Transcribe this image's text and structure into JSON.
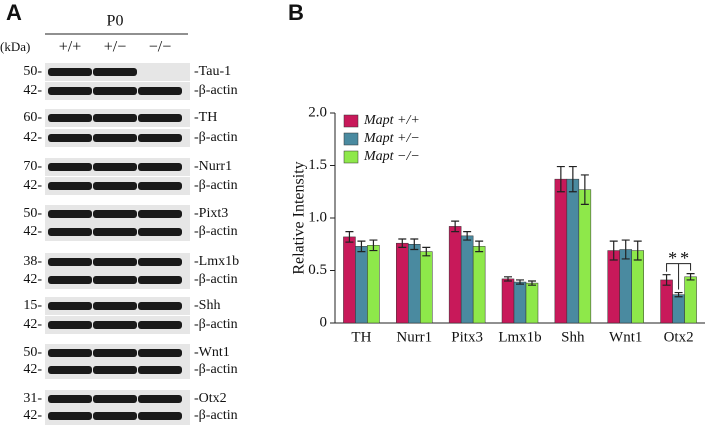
{
  "panel_a": {
    "panel_label": "A",
    "stage": "P0",
    "unit": "(kDa)",
    "genotypes": [
      "+/+",
      "+/−",
      "−/−"
    ],
    "blots": [
      {
        "marker": "50-",
        "protein": "-Tau-1",
        "actin_marker": "42-",
        "actin": "-β-actin"
      },
      {
        "marker": "60-",
        "protein": "-TH",
        "actin_marker": "42-",
        "actin": "-β-actin"
      },
      {
        "marker": "70-",
        "protein": "-Nurr1",
        "actin_marker": "42-",
        "actin": "-β-actin"
      },
      {
        "marker": "50-",
        "protein": "-Pixt3",
        "actin_marker": "42-",
        "actin": "-β-actin"
      },
      {
        "marker": "38-",
        "protein": "-Lmx1b",
        "actin_marker": "42-",
        "actin": "-β-actin"
      },
      {
        "marker": "15-",
        "protein": "-Shh",
        "actin_marker": "42-",
        "actin": "-β-actin"
      },
      {
        "marker": "50-",
        "protein": "-Wnt1",
        "actin_marker": "42-",
        "actin": "-β-actin"
      },
      {
        "marker": "31-",
        "protein": "-Otx2",
        "actin_marker": "42-",
        "actin": "-β-actin"
      }
    ]
  },
  "chart_data": {
    "type": "bar",
    "panel_label": "B",
    "y_label": "Relative Intensity",
    "categories": [
      "TH",
      "Nurr1",
      "Pitx3",
      "Lmx1b",
      "Shh",
      "Wnt1",
      "Otx2"
    ],
    "series": [
      {
        "name": "Mapt +/+",
        "color": "#c8195a",
        "values": [
          0.82,
          0.76,
          0.92,
          0.42,
          1.37,
          0.69,
          0.41
        ],
        "errors": [
          0.05,
          0.04,
          0.05,
          0.02,
          0.12,
          0.09,
          0.05
        ]
      },
      {
        "name": "Mapt +/−",
        "color": "#4a8aa0",
        "values": [
          0.73,
          0.75,
          0.83,
          0.39,
          1.37,
          0.7,
          0.27
        ],
        "errors": [
          0.05,
          0.05,
          0.04,
          0.02,
          0.12,
          0.09,
          0.02
        ]
      },
      {
        "name": "Mapt −/−",
        "color": "#8ee84a",
        "values": [
          0.74,
          0.68,
          0.73,
          0.38,
          1.27,
          0.69,
          0.44
        ],
        "errors": [
          0.05,
          0.04,
          0.05,
          0.02,
          0.14,
          0.09,
          0.03
        ]
      }
    ],
    "ylim": [
      0,
      2
    ],
    "yticks": [
      0,
      0.5,
      {
        "value": 1,
        "label": "1.0"
      },
      1.5,
      {
        "value": 2,
        "label": "2.0"
      }
    ],
    "annotations": [
      "*",
      "*"
    ]
  }
}
